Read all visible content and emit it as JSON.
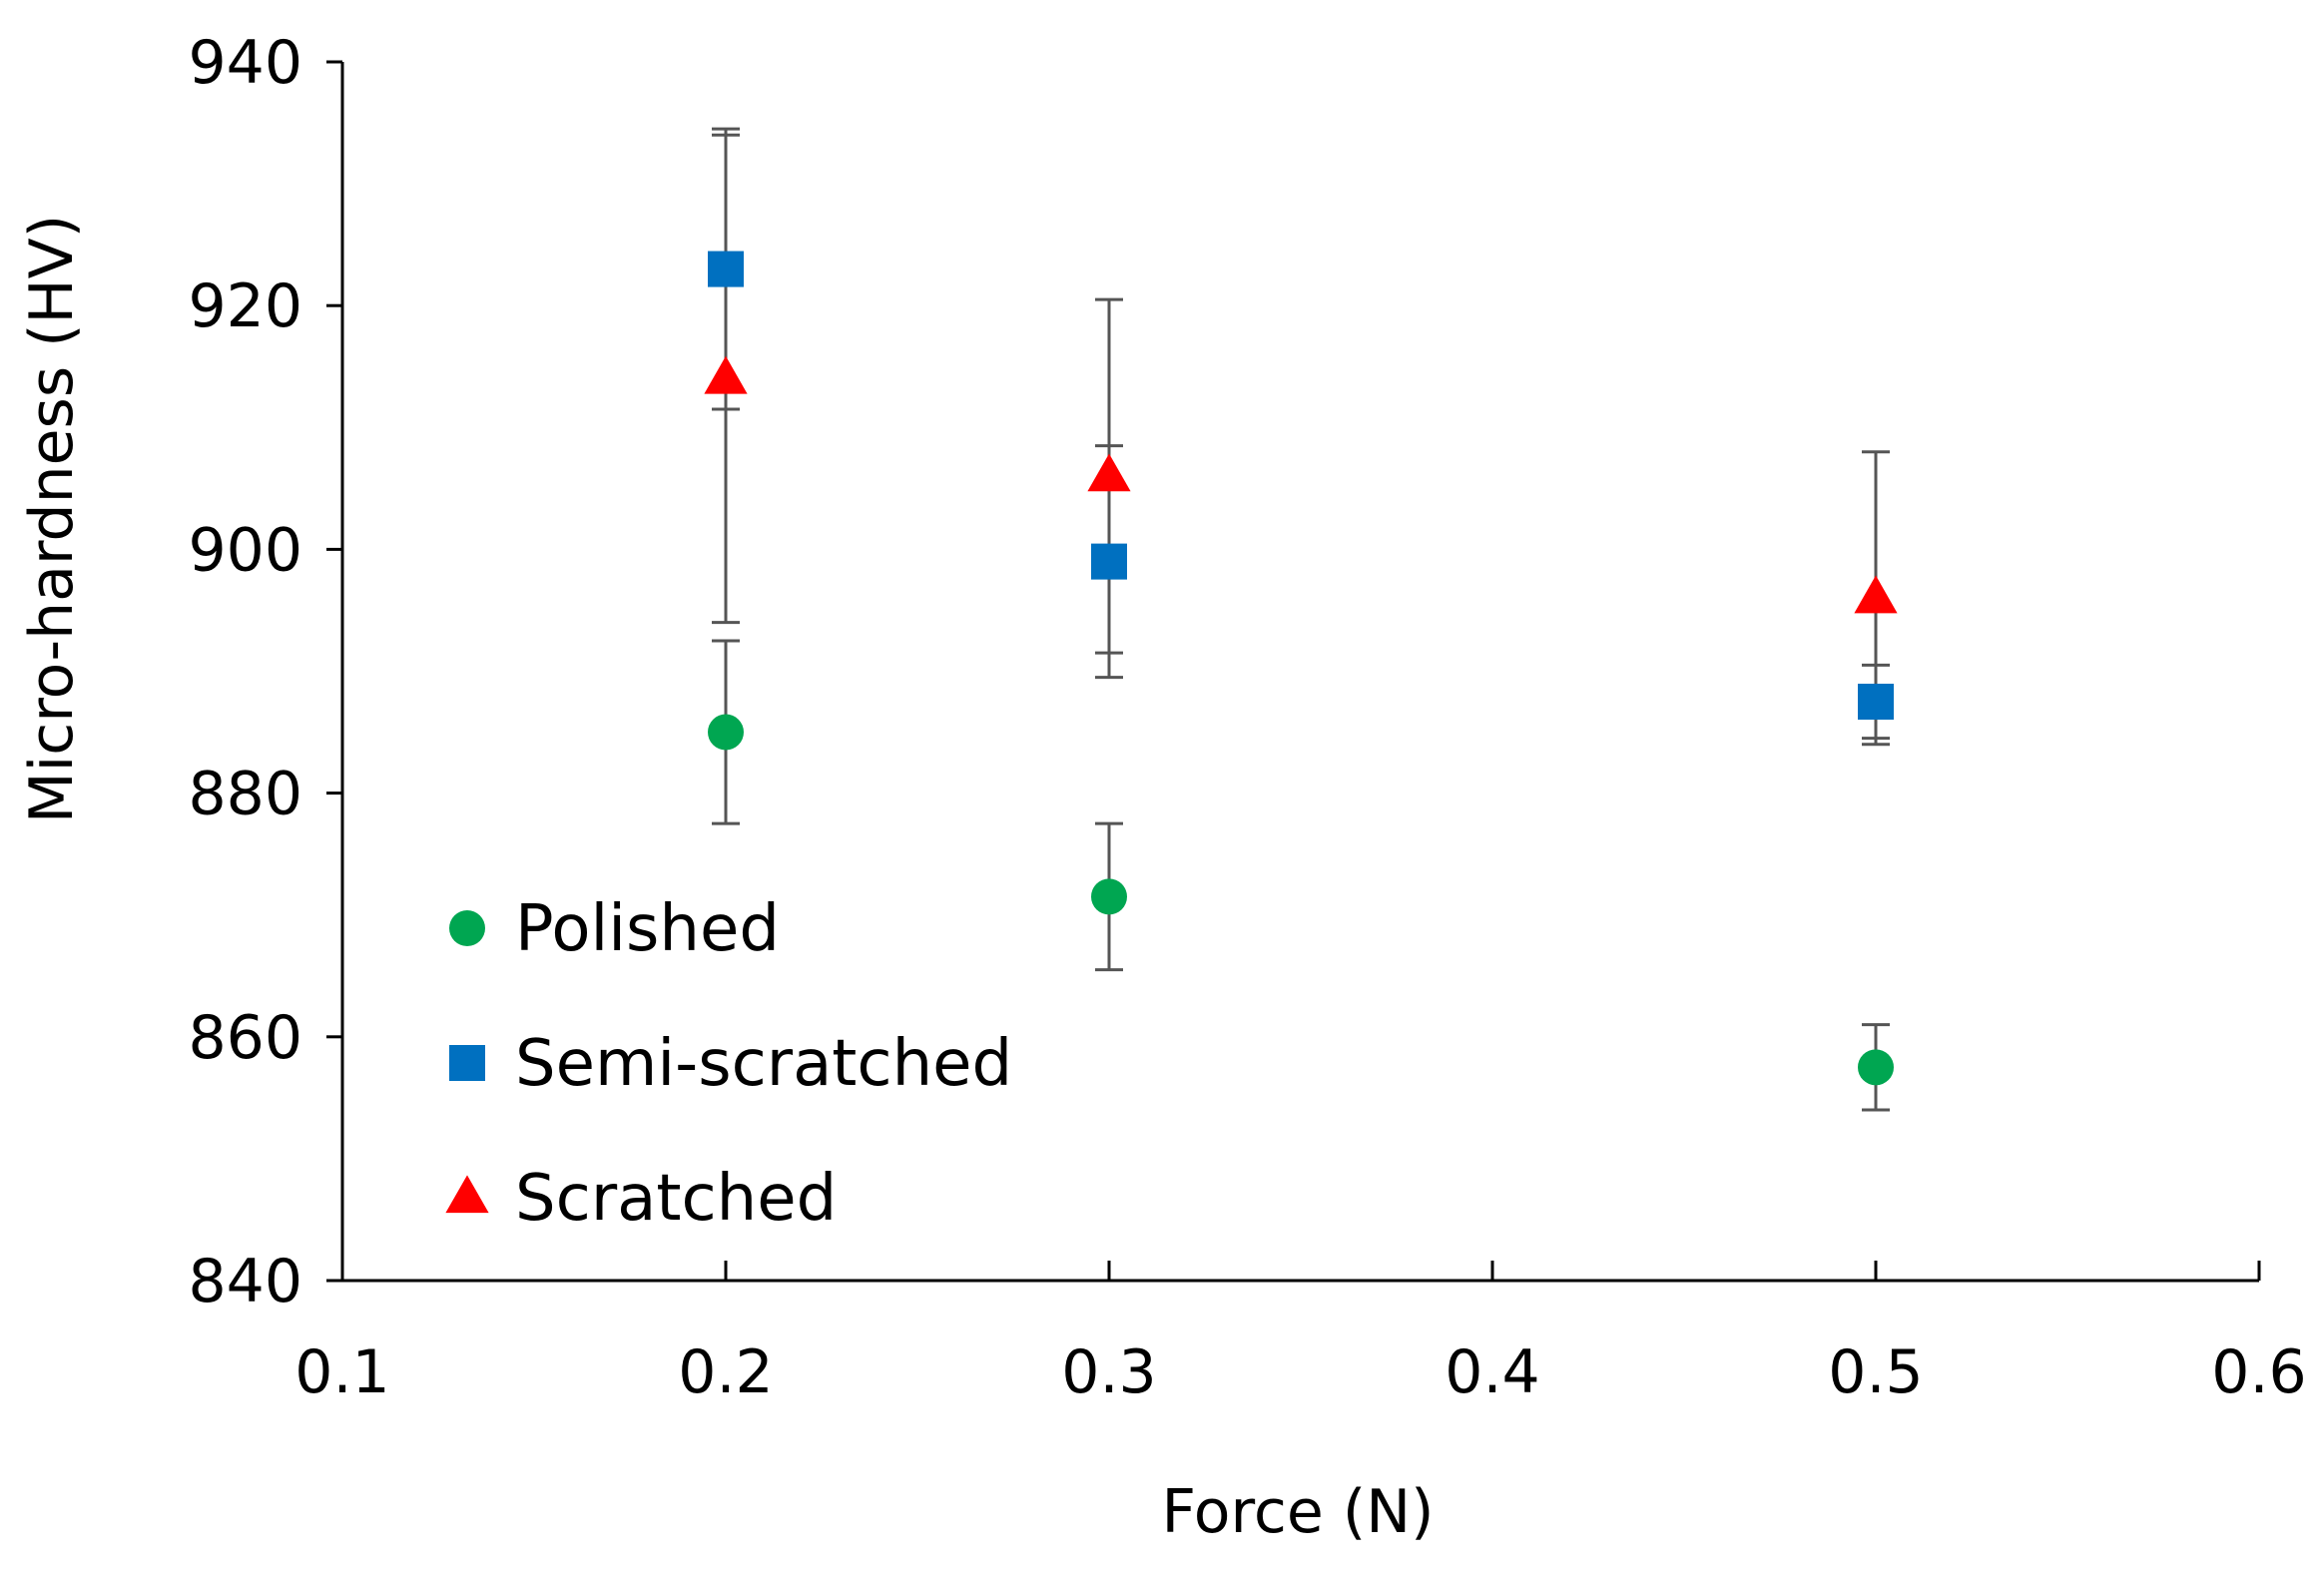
{
  "chart_data": {
    "type": "scatter",
    "title": "",
    "xlabel": "Force (N)",
    "ylabel": "Micro-hardness (HV)",
    "xlim": [
      0.1,
      0.6
    ],
    "ylim": [
      840,
      940
    ],
    "x_ticks": [
      0.1,
      0.2,
      0.3,
      0.4,
      0.5,
      0.6
    ],
    "x_tick_labels": [
      "0.1",
      "0.2",
      "0.3",
      "0.4",
      "0.5",
      "0.6"
    ],
    "y_ticks": [
      840,
      860,
      880,
      900,
      920,
      940
    ],
    "y_tick_labels": [
      "840",
      "860",
      "880",
      "900",
      "920",
      "940"
    ],
    "grid": false,
    "legend_position": "lower-left",
    "series": [
      {
        "name": "Polished",
        "marker": "circle",
        "color": "#00a651",
        "x": [
          0.2,
          0.3,
          0.5
        ],
        "y": [
          885,
          871.5,
          857.5
        ],
        "error": [
          7.5,
          6,
          3.5
        ]
      },
      {
        "name": "Semi-scratched",
        "marker": "square",
        "color": "#0070c0",
        "x": [
          0.2,
          0.3,
          0.5
        ],
        "y": [
          923,
          899,
          887.5
        ],
        "error": [
          11.5,
          9.5,
          3
        ]
      },
      {
        "name": "Scratched",
        "marker": "triangle",
        "color": "#ff0000",
        "x": [
          0.2,
          0.3,
          0.5
        ],
        "y": [
          914,
          906,
          896
        ],
        "error": [
          20,
          14.5,
          12
        ]
      }
    ]
  }
}
